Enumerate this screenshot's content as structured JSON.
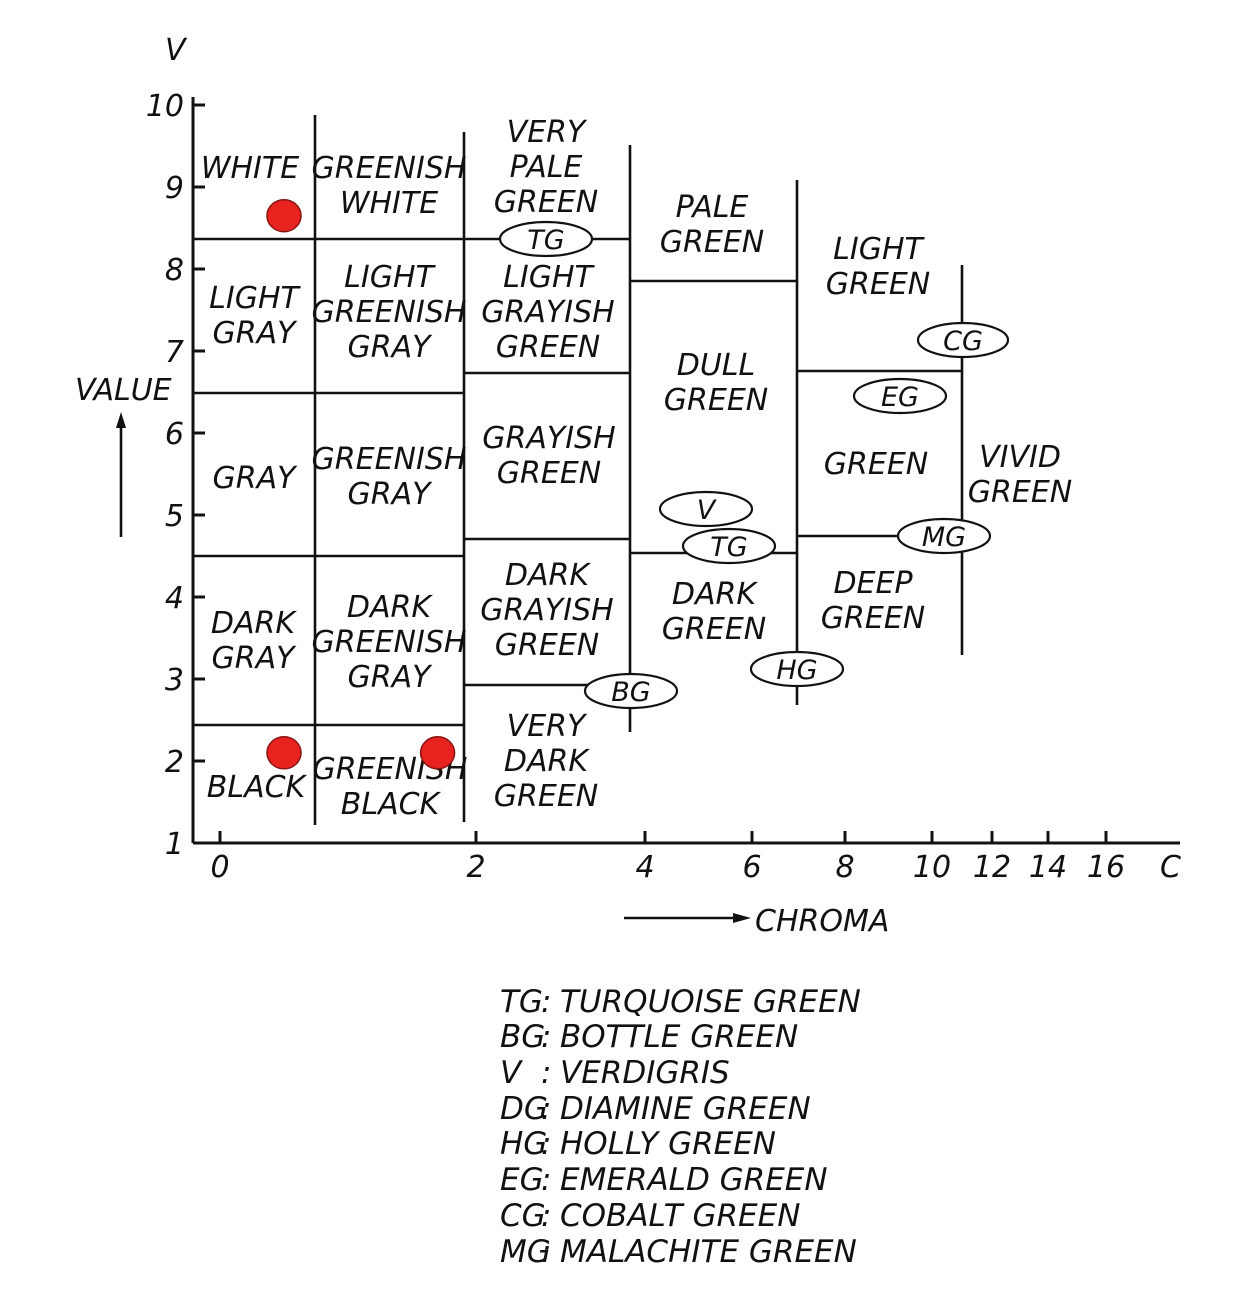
{
  "axes": {
    "y_symbol": "V",
    "y_label": "VALUE",
    "x_symbol": "C",
    "x_label": "CHROMA",
    "y_ticks": [
      "1",
      "2",
      "3",
      "4",
      "5",
      "6",
      "7",
      "8",
      "9",
      "10"
    ],
    "x_ticks": [
      "0",
      "2",
      "4",
      "6",
      "8",
      "10",
      "12",
      "14",
      "16"
    ]
  },
  "regions": [
    {
      "id": "white",
      "lines": [
        "WHITE"
      ]
    },
    {
      "id": "greenish-white",
      "lines": [
        "GREENISH",
        "WHITE"
      ]
    },
    {
      "id": "very-pale-green",
      "lines": [
        "VERY",
        "PALE",
        "GREEN"
      ]
    },
    {
      "id": "pale-green",
      "lines": [
        "PALE",
        "GREEN"
      ]
    },
    {
      "id": "light-green",
      "lines": [
        "LIGHT",
        "GREEN"
      ]
    },
    {
      "id": "light-gray",
      "lines": [
        "LIGHT",
        "GRAY"
      ]
    },
    {
      "id": "light-greenish-gray",
      "lines": [
        "LIGHT",
        "GREENISH",
        "GRAY"
      ]
    },
    {
      "id": "light-grayish-green",
      "lines": [
        "LIGHT",
        "GRAYISH",
        "GREEN"
      ]
    },
    {
      "id": "dull-green",
      "lines": [
        "DULL",
        "GREEN"
      ]
    },
    {
      "id": "gray",
      "lines": [
        "GRAY"
      ]
    },
    {
      "id": "greenish-gray",
      "lines": [
        "GREENISH",
        "GRAY"
      ]
    },
    {
      "id": "grayish-green",
      "lines": [
        "GRAYISH",
        "GREEN"
      ]
    },
    {
      "id": "green",
      "lines": [
        "GREEN"
      ]
    },
    {
      "id": "vivid-green",
      "lines": [
        "VIVID",
        "GREEN"
      ]
    },
    {
      "id": "dark-gray",
      "lines": [
        "DARK",
        "GRAY"
      ]
    },
    {
      "id": "dark-greenish-gray",
      "lines": [
        "DARK",
        "GREENISH",
        "GRAY"
      ]
    },
    {
      "id": "dark-grayish-green",
      "lines": [
        "DARK",
        "GRAYISH",
        "GREEN"
      ]
    },
    {
      "id": "dark-green",
      "lines": [
        "DARK",
        "GREEN"
      ]
    },
    {
      "id": "deep-green",
      "lines": [
        "DEEP",
        "GREEN"
      ]
    },
    {
      "id": "black",
      "lines": [
        "BLACK"
      ]
    },
    {
      "id": "greenish-black",
      "lines": [
        "GREENISH",
        "BLACK"
      ]
    },
    {
      "id": "very-dark-green",
      "lines": [
        "VERY",
        "DARK",
        "GREEN"
      ]
    }
  ],
  "markers": [
    {
      "code": "TG"
    },
    {
      "code": "CG"
    },
    {
      "code": "EG"
    },
    {
      "code": "V"
    },
    {
      "code": "TG"
    },
    {
      "code": "MG"
    },
    {
      "code": "HG"
    },
    {
      "code": "BG"
    }
  ],
  "points": [
    {
      "chroma": 0.5,
      "value": 8.65
    },
    {
      "chroma": 0.5,
      "value": 2.1
    },
    {
      "chroma": 1.7,
      "value": 2.1
    }
  ],
  "point_color": "#e8231f",
  "legend": [
    {
      "code": "TG",
      "sep": ":",
      "name": "TURQUOISE  GREEN"
    },
    {
      "code": "BG",
      "sep": ":",
      "name": "BOTTLE  GREEN"
    },
    {
      "code": "V",
      "sep": ":",
      "name": "VERDIGRIS"
    },
    {
      "code": "DG",
      "sep": ":",
      "name": "DIAMINE  GREEN"
    },
    {
      "code": "HG",
      "sep": ":",
      "name": "HOLLY  GREEN"
    },
    {
      "code": "EG",
      "sep": ":",
      "name": "EMERALD  GREEN"
    },
    {
      "code": "CG",
      "sep": ":",
      "name": "COBALT  GREEN"
    },
    {
      "code": "MG",
      "sep": ":",
      "name": "MALACHITE  GREEN"
    }
  ]
}
